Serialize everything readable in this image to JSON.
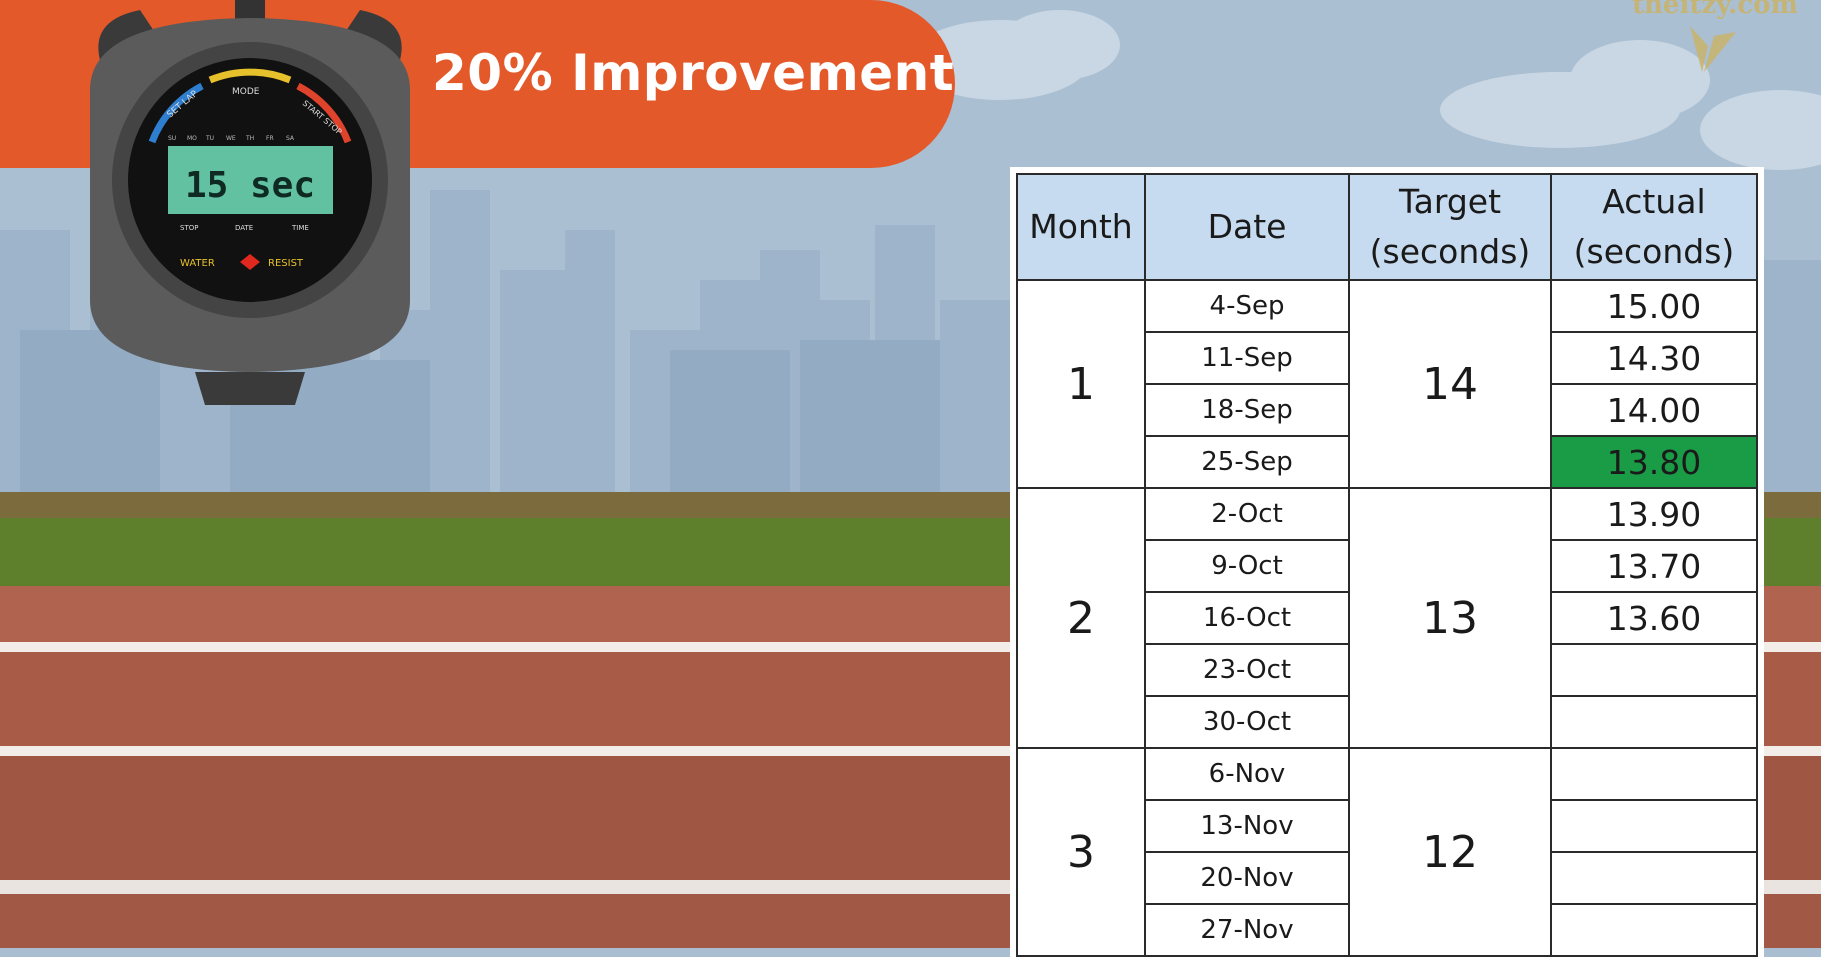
{
  "banner": {
    "title": "20% Improvement"
  },
  "watermark": {
    "text": "theitzy.com"
  },
  "stopwatch": {
    "display": "15 sec",
    "arc_labels": [
      "SET LAP",
      "MODE",
      "START STOP"
    ],
    "days": [
      "SU",
      "MO",
      "TU",
      "WE",
      "TH",
      "FR",
      "SA"
    ],
    "bottom_labels": [
      "STOP",
      "DATE",
      "TIME"
    ],
    "water_resist": [
      "WATER",
      "RESIST"
    ]
  },
  "table": {
    "headers": {
      "month": "Month",
      "date": "Date",
      "target_line1": "Target",
      "target_line2": "(seconds)",
      "actual_line1": "Actual",
      "actual_line2": "(seconds)"
    },
    "months": [
      {
        "month": "1",
        "target": "14",
        "rows": [
          {
            "date": "4-Sep",
            "actual": "15.00",
            "highlight": false
          },
          {
            "date": "11-Sep",
            "actual": "14.30",
            "highlight": false
          },
          {
            "date": "18-Sep",
            "actual": "14.00",
            "highlight": false
          },
          {
            "date": "25-Sep",
            "actual": "13.80",
            "highlight": true
          }
        ]
      },
      {
        "month": "2",
        "target": "13",
        "rows": [
          {
            "date": "2-Oct",
            "actual": "13.90",
            "highlight": false
          },
          {
            "date": "9-Oct",
            "actual": "13.70",
            "highlight": false
          },
          {
            "date": "16-Oct",
            "actual": "13.60",
            "highlight": false
          },
          {
            "date": "23-Oct",
            "actual": "",
            "highlight": false
          },
          {
            "date": "30-Oct",
            "actual": "",
            "highlight": false
          }
        ]
      },
      {
        "month": "3",
        "target": "12",
        "rows": [
          {
            "date": "6-Nov",
            "actual": "",
            "highlight": false
          },
          {
            "date": "13-Nov",
            "actual": "",
            "highlight": false
          },
          {
            "date": "20-Nov",
            "actual": "",
            "highlight": false
          },
          {
            "date": "27-Nov",
            "actual": "",
            "highlight": false
          }
        ]
      }
    ]
  },
  "colors": {
    "banner": "#e4592a",
    "header_fill": "#c6dbf0",
    "highlight": "#1a9c46",
    "track": "#b0634e",
    "grass": "#5e7f2c",
    "sky": "#a9bed0"
  }
}
